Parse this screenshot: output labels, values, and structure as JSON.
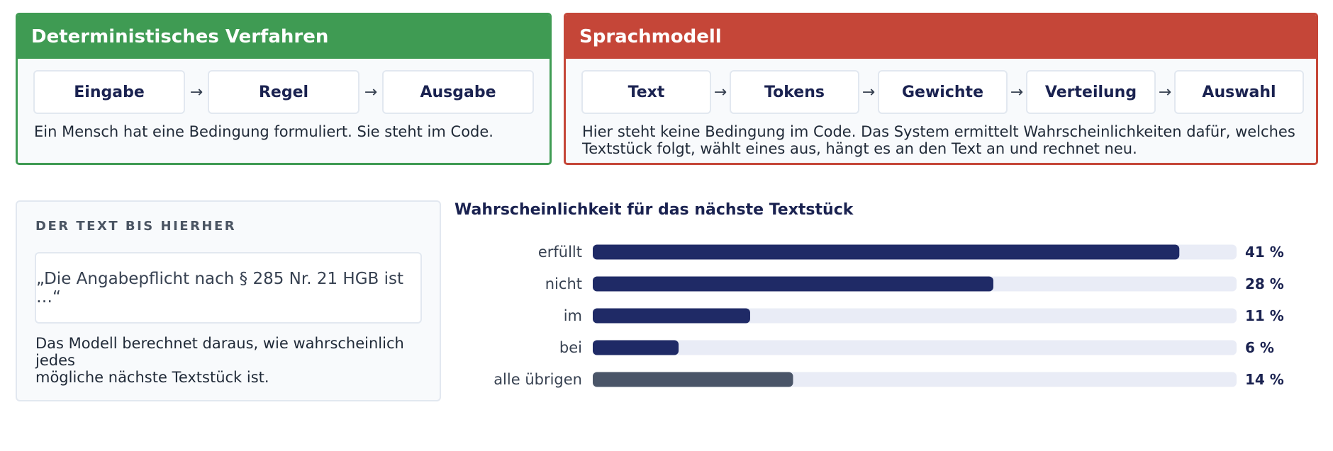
{
  "deterministic": {
    "title": "Deterministisches Verfahren",
    "steps": [
      "Eingabe",
      "Regel",
      "Ausgabe"
    ],
    "arrow": "→",
    "description": "Ein Mensch hat eine Bedingung formuliert. Sie steht im Code."
  },
  "language_model": {
    "title": "Sprachmodell",
    "steps": [
      "Text",
      "Tokens",
      "Gewichte",
      "Verteilung",
      "Auswahl"
    ],
    "arrow": "→",
    "description_line1": "Hier steht keine Bedingung im Code. Das System ermittelt Wahrscheinlichkeiten dafür, welches",
    "description_line2": "Textstück folgt, wählt eines aus, hängt es an den Text an und rechnet neu."
  },
  "context": {
    "heading": "DER TEXT BIS HIERHER",
    "quote": "„Die Angabepflicht nach § 285 Nr. 21 HGB ist …“",
    "note_line1": "Das Modell berechnet daraus, wie wahrscheinlich jedes",
    "note_line2": "mögliche nächste Textstück ist."
  },
  "chart_data": {
    "type": "bar",
    "orientation": "horizontal",
    "title": "Wahrscheinlichkeit für das nächste Textstück",
    "categories": [
      "erfüllt",
      "nicht",
      "im",
      "bei",
      "alle übrigen"
    ],
    "values": [
      41,
      28,
      11,
      6,
      14
    ],
    "value_labels": [
      "41 %",
      "28 %",
      "11 %",
      "6 %",
      "14 %"
    ],
    "xlim": [
      0,
      45
    ],
    "unit": "%",
    "colors": {
      "bar": "#1f2a66",
      "bar_rest": "#4a5568",
      "track": "#e9ecf6",
      "label": "#374151",
      "value": "#1a2250"
    }
  }
}
